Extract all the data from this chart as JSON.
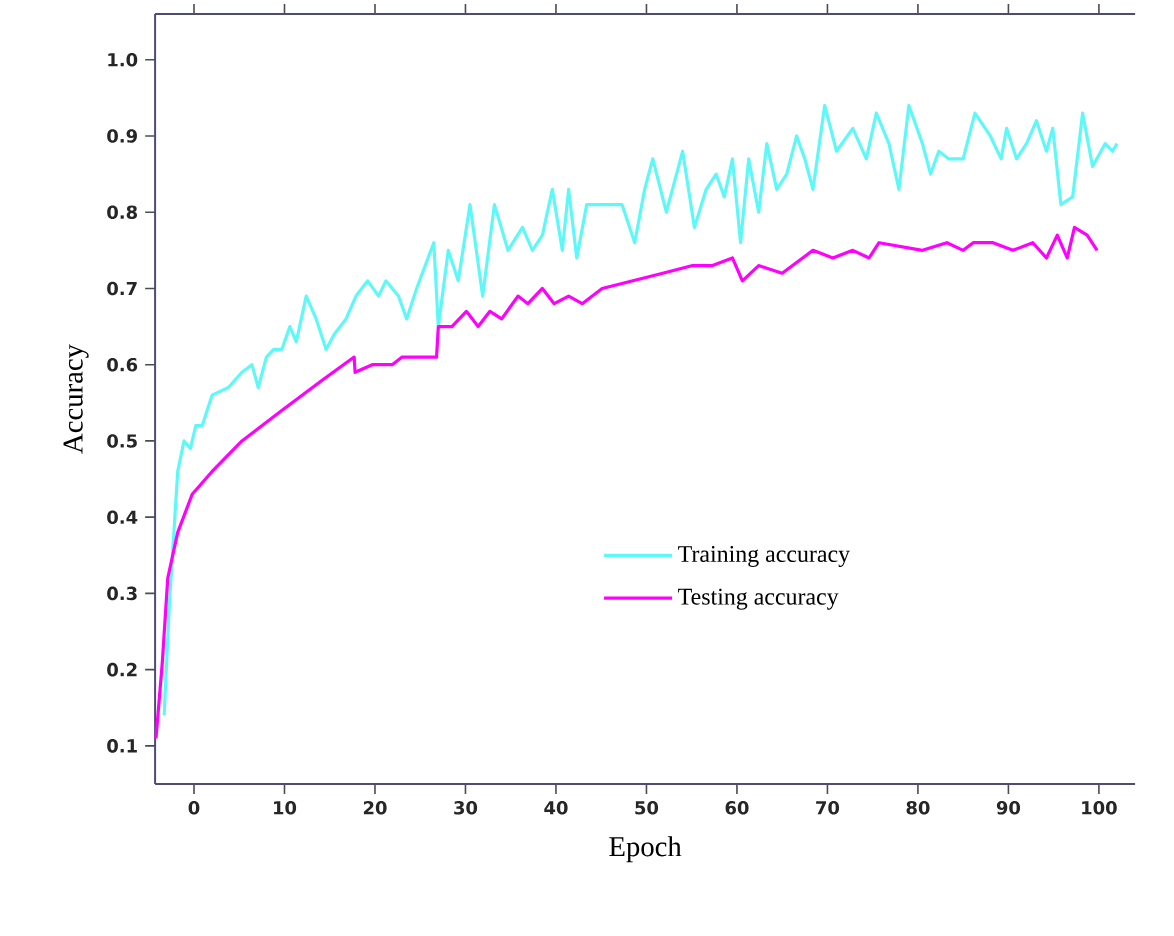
{
  "chart_data": {
    "type": "line",
    "xlabel": "Epoch",
    "ylabel": "Accuracy",
    "xlim": [
      -4.3,
      104
    ],
    "ylim": [
      0.05,
      1.06
    ],
    "xticks": [
      0,
      10,
      20,
      30,
      40,
      50,
      60,
      70,
      80,
      90,
      100
    ],
    "yticks": [
      0.1,
      0.2,
      0.3,
      0.4,
      0.5,
      0.6,
      0.7,
      0.8,
      0.9,
      {
        "value": 1.0,
        "label": "1.0"
      }
    ],
    "grid": false,
    "legend": "right",
    "marker": "none",
    "line_style": "solid",
    "series": [
      {
        "name": "Training accuracy",
        "color": "#5ff8f8",
        "x": [
          -3.3,
          -2.7,
          -1.8,
          -1.1,
          -0.4,
          0.2,
          0.9,
          2,
          3.8,
          5.3,
          6.4,
          7.1,
          8,
          8.8,
          9.7,
          10.6,
          11.3,
          12.4,
          13.5,
          14.6,
          15.5,
          16.8,
          17.9,
          19.2,
          20.4,
          21.2,
          22.6,
          23.5,
          24.6,
          26.5,
          27,
          28.1,
          29.2,
          30.5,
          31.9,
          33.2,
          34.7,
          36.3,
          37.4,
          38.5,
          39.6,
          40.7,
          41.4,
          42.3,
          43.4,
          47.3,
          48.7,
          49.8,
          50.7,
          52.2,
          54,
          55.3,
          56.6,
          57.7,
          58.6,
          59.5,
          60.4,
          61.3,
          62.4,
          63.3,
          64.4,
          65.5,
          66.6,
          67.5,
          68.4,
          69.7,
          71,
          72.8,
          74.3,
          75.4,
          76.8,
          77.9,
          79,
          80.5,
          81.4,
          82.3,
          83.4,
          85,
          86.3,
          88,
          89.2,
          89.8,
          90.9,
          92,
          93.1,
          94.2,
          94.9,
          95.8,
          97.1,
          98.2,
          99.3,
          100.7,
          101.5,
          102
        ],
        "values": [
          0.14,
          0.29,
          0.46,
          0.5,
          0.49,
          0.52,
          0.52,
          0.56,
          0.57,
          0.59,
          0.6,
          0.57,
          0.61,
          0.62,
          0.62,
          0.65,
          0.63,
          0.69,
          0.66,
          0.62,
          0.64,
          0.66,
          0.69,
          0.71,
          0.69,
          0.71,
          0.69,
          0.66,
          0.7,
          0.76,
          0.65,
          0.75,
          0.71,
          0.81,
          0.69,
          0.81,
          0.75,
          0.78,
          0.75,
          0.77,
          0.83,
          0.75,
          0.83,
          0.74,
          0.81,
          0.81,
          0.76,
          0.83,
          0.87,
          0.8,
          0.88,
          0.78,
          0.83,
          0.85,
          0.82,
          0.87,
          0.76,
          0.87,
          0.8,
          0.89,
          0.83,
          0.85,
          0.9,
          0.87,
          0.83,
          0.94,
          0.88,
          0.91,
          0.87,
          0.93,
          0.89,
          0.83,
          0.94,
          0.89,
          0.85,
          0.88,
          0.87,
          0.87,
          0.93,
          0.9,
          0.87,
          0.91,
          0.87,
          0.89,
          0.92,
          0.88,
          0.91,
          0.81,
          0.82,
          0.93,
          0.86,
          0.89,
          0.88,
          0.89
        ]
      },
      {
        "name": "Testing accuracy",
        "color": "#ff00ff",
        "x": [
          -4.2,
          -3.5,
          -2.9,
          -1.8,
          -0.2,
          2,
          5.3,
          9.7,
          14.2,
          17.7,
          17.8,
          19.7,
          21.9,
          23,
          24.8,
          26.8,
          27,
          28.5,
          30.1,
          31.4,
          32.7,
          34,
          35.8,
          36.9,
          38.5,
          39.8,
          41.4,
          42.9,
          45.1,
          48.5,
          51.8,
          55.1,
          57.3,
          59.5,
          60.6,
          62.4,
          65,
          68.4,
          70.6,
          72.8,
          74.6,
          75.7,
          80.5,
          83.2,
          85,
          86.1,
          88.3,
          90.5,
          92.7,
          94.2,
          95.4,
          96.5,
          97.3,
          98.7,
          99.8
        ],
        "values": [
          0.11,
          0.21,
          0.32,
          0.38,
          0.43,
          0.46,
          0.5,
          0.54,
          0.58,
          0.61,
          0.59,
          0.6,
          0.6,
          0.61,
          0.61,
          0.61,
          0.65,
          0.65,
          0.67,
          0.65,
          0.67,
          0.66,
          0.69,
          0.68,
          0.7,
          0.68,
          0.69,
          0.68,
          0.7,
          0.71,
          0.72,
          0.73,
          0.73,
          0.74,
          0.71,
          0.73,
          0.72,
          0.75,
          0.74,
          0.75,
          0.74,
          0.76,
          0.75,
          0.76,
          0.75,
          0.76,
          0.76,
          0.75,
          0.76,
          0.74,
          0.77,
          0.74,
          0.78,
          0.77,
          0.75
        ]
      }
    ]
  }
}
